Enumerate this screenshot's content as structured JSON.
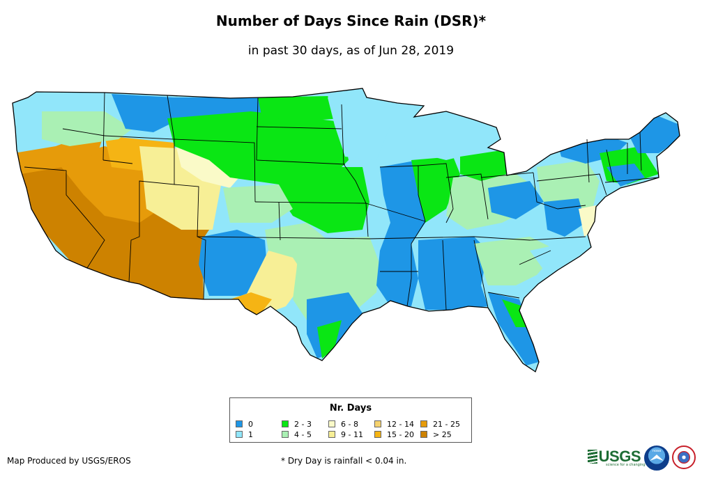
{
  "title": "Number of Days Since Rain (DSR)*",
  "subtitle": "in past 30 days, as of Jun 28, 2019",
  "legend": {
    "title": "Nr. Days",
    "items": [
      {
        "label": "0",
        "color": "#1e96e6"
      },
      {
        "label": "1",
        "color": "#91e6fa"
      },
      {
        "label": "2 - 3",
        "color": "#0ae614"
      },
      {
        "label": "4 - 5",
        "color": "#aaf0b4"
      },
      {
        "label": "6 - 8",
        "color": "#fafac8"
      },
      {
        "label": "9 - 11",
        "color": "#f7ef96"
      },
      {
        "label": "12 - 14",
        "color": "#f5d26e"
      },
      {
        "label": "15 - 20",
        "color": "#f5b414"
      },
      {
        "label": "21 - 25",
        "color": "#e69b0a"
      },
      {
        "label": "> 25",
        "color": "#cd8200"
      }
    ]
  },
  "footer": {
    "credit": "Map Produced by USGS/EROS",
    "footnote": "* Dry Day is rainfall < 0.04 in."
  },
  "logos": {
    "usgs": "USGS",
    "usgs_tagline": "science for a changing world",
    "noaa": "noaa",
    "nws_icon": "nws-logo-icon"
  }
}
